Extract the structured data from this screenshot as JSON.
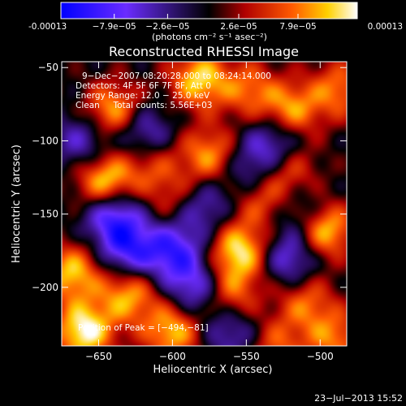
{
  "chart_data": {
    "type": "heatmap",
    "title": "Reconstructed RHESSI Image",
    "xlabel": "Heliocentric X (arcsec)",
    "ylabel": "Heliocentric Y (arcsec)",
    "x_ticks": [
      -650,
      -600,
      -550,
      -500
    ],
    "y_ticks": [
      -50,
      -100,
      -150,
      -200
    ],
    "xlim": [
      -675,
      -482
    ],
    "ylim": [
      -240,
      -46
    ],
    "grid": false,
    "colorbar": {
      "ticks": [
        "-0.00013",
        "−7.9e−05",
        "−2.6e−05",
        "2.6e−05",
        "7.9e−05",
        "0.00013"
      ],
      "range": [
        -0.00013,
        0.00013
      ],
      "label": "(photons cm⁻² s⁻¹ asec⁻²)",
      "colors": [
        "#0000ff",
        "#6a2cff",
        "#000000",
        "#b00000",
        "#ff5a00",
        "#ffd000",
        "#ffffff"
      ]
    },
    "info": {
      "time_range": "9−Dec−2007 08:20:28.000 to 08:24:14.000",
      "detectors": "Detectors: 4F 5F 6F 7F 8F, Att 0",
      "energy": "Energy Range: 12.0 − 25.0 keV",
      "method": "Clean     Total counts: 5.56E+03"
    },
    "peak_label": "Position of Peak = [−494,−81]",
    "sources": [
      {
        "x": -498,
        "y": -160,
        "v": 1.0
      },
      {
        "x": -645,
        "y": -128,
        "v": 0.95
      },
      {
        "x": -640,
        "y": -80,
        "v": 0.8
      },
      {
        "x": -582,
        "y": -58,
        "v": 0.85
      },
      {
        "x": -548,
        "y": -65,
        "v": 0.55
      },
      {
        "x": -520,
        "y": -80,
        "v": 0.75
      },
      {
        "x": -488,
        "y": -65,
        "v": 0.6
      },
      {
        "x": -615,
        "y": -115,
        "v": 0.45
      },
      {
        "x": -575,
        "y": -110,
        "v": 0.7
      },
      {
        "x": -540,
        "y": -140,
        "v": 0.5
      },
      {
        "x": -520,
        "y": -120,
        "v": 0.5
      },
      {
        "x": -600,
        "y": -140,
        "v": 0.4
      },
      {
        "x": -668,
        "y": -190,
        "v": 0.8
      },
      {
        "x": -660,
        "y": -230,
        "v": 1.0
      },
      {
        "x": -600,
        "y": -230,
        "v": 0.8
      },
      {
        "x": -555,
        "y": -175,
        "v": 0.9
      },
      {
        "x": -560,
        "y": -205,
        "v": 0.6
      },
      {
        "x": -630,
        "y": -205,
        "v": 0.75
      },
      {
        "x": -510,
        "y": -210,
        "v": 0.55
      },
      {
        "x": -490,
        "y": -235,
        "v": 0.6
      },
      {
        "x": -530,
        "y": -240,
        "v": 0.5
      }
    ],
    "sinks": [
      {
        "x": -640,
        "y": -150,
        "v": 0.8
      },
      {
        "x": -600,
        "y": -175,
        "v": 0.7
      },
      {
        "x": -560,
        "y": -230,
        "v": 0.5
      },
      {
        "x": -530,
        "y": -100,
        "v": 0.6
      },
      {
        "x": -620,
        "y": -95,
        "v": 0.6
      },
      {
        "x": -580,
        "y": -145,
        "v": 0.5
      },
      {
        "x": -520,
        "y": -180,
        "v": 0.6
      },
      {
        "x": -630,
        "y": -175,
        "v": 0.7
      },
      {
        "x": -510,
        "y": -150,
        "v": 0.5
      },
      {
        "x": -585,
        "y": -200,
        "v": 0.6
      },
      {
        "x": -660,
        "y": -100,
        "v": 0.5
      },
      {
        "x": -548,
        "y": -120,
        "v": 0.45
      }
    ]
  },
  "footer": {
    "date": "23−Jul−2013 15:52"
  }
}
